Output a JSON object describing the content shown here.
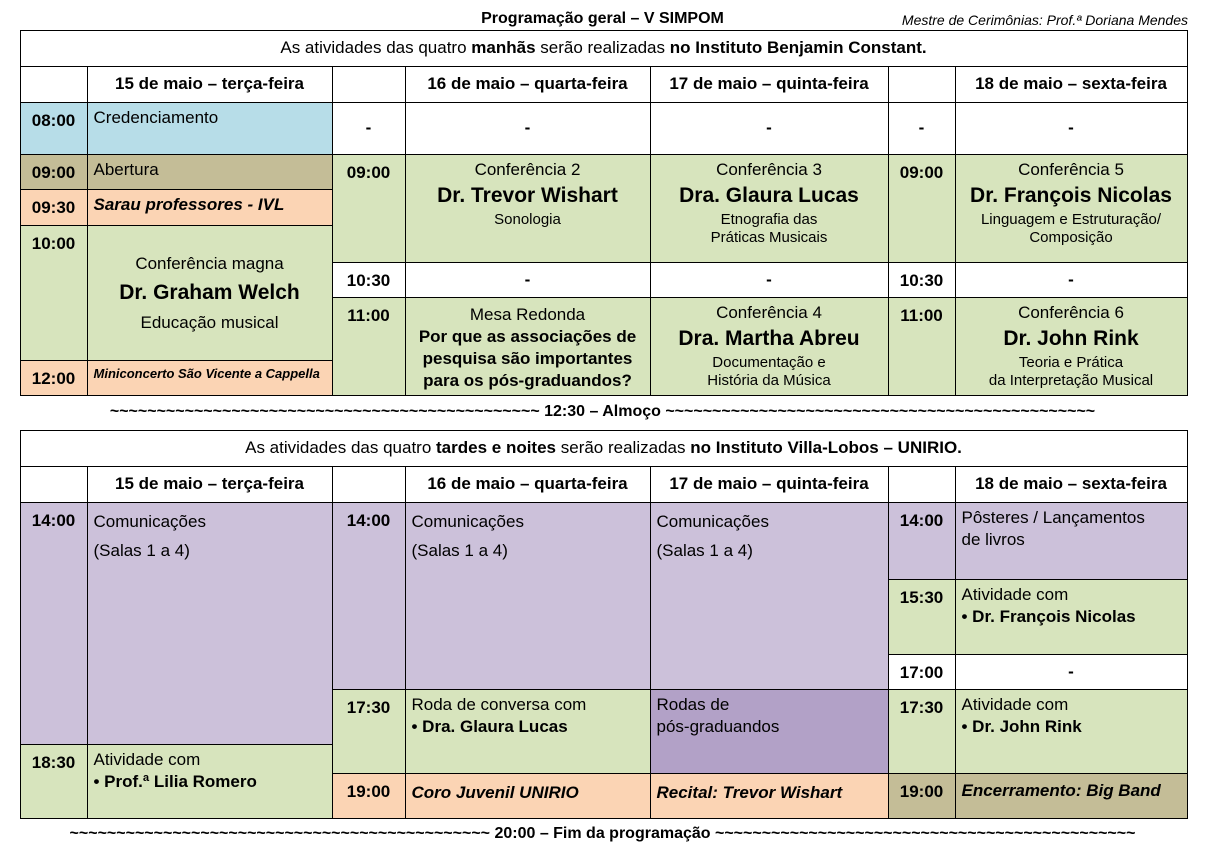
{
  "title": "Programação geral – V SIMPOM",
  "master": "Mestre de Cerimônias: Prof.ª Doriana Mendes",
  "colors": {
    "blue": "#b7dde8",
    "tan": "#c4bd97",
    "peach": "#fbd4b4",
    "green": "#d7e4bd",
    "lavender": "#ccc1da",
    "purple": "#b2a1c7",
    "white": "#ffffff"
  },
  "morning": {
    "header": [
      "As atividades das quatro ",
      "manhãs",
      " serão realizadas ",
      "no Instituto Benjamin Constant."
    ],
    "days": [
      "15 de maio – terça-feira",
      "16 de maio – quarta-feira",
      "17 de maio – quinta-feira",
      "18 de maio – sexta-feira"
    ],
    "d15": {
      "t0800": "08:00",
      "credenciamento": [
        "Credenciamento"
      ],
      "t0900": "09:00",
      "abertura": [
        "Abertura"
      ],
      "t0930": "09:30",
      "sarau": [
        "Sarau professores - IVL"
      ],
      "t1000": "10:00",
      "magna": [
        "Conferência magna",
        "Dr. Graham Welch",
        "Educação musical"
      ],
      "t1200": "12:00",
      "miniconcerto": [
        "Miniconcerto São Vicente a Cappella"
      ]
    },
    "dash": "-",
    "d16": {
      "t0900": "09:00",
      "conf2": [
        "Conferência 2",
        "Dr. Trevor Wishart",
        "Sonologia"
      ],
      "t1030": "10:30",
      "t1100": "11:00",
      "mesa": [
        "Mesa Redonda",
        "Por que as associações de",
        "pesquisa são importantes",
        "para os pós-graduandos?"
      ]
    },
    "d17": {
      "conf3": [
        "Conferência 3",
        "Dra. Glaura Lucas",
        "Etnografia das",
        "Práticas Musicais"
      ],
      "conf4": [
        "Conferência 4",
        "Dra. Martha Abreu",
        "Documentação e",
        "História da Música"
      ]
    },
    "d18": {
      "t0900": "09:00",
      "conf5": [
        "Conferência 5",
        "Dr. François Nicolas",
        "Linguagem e Estruturação/",
        "Composição"
      ],
      "t1030": "10:30",
      "t1100": "11:00",
      "conf6": [
        "Conferência 6",
        "Dr. John Rink",
        "Teoria e Prática",
        "da Interpretação Musical"
      ]
    }
  },
  "lunch": "~~~~~~~~~~~~~~~~~~~~~~~~~~~~~~~~~~~~~~~~~~~~~~ 12:30 – Almoço ~~~~~~~~~~~~~~~~~~~~~~~~~~~~~~~~~~~~~~~~~~~~~~",
  "afternoon": {
    "header": [
      "As atividades das quatro ",
      "tardes e noites",
      " serão realizadas ",
      "no Instituto Villa-Lobos – UNIRIO."
    ],
    "days": [
      "15 de maio – terça-feira",
      "16 de maio – quarta-feira",
      "17 de maio – quinta-feira",
      "18 de maio – sexta-feira"
    ],
    "d15": {
      "t1400": "14:00",
      "comunicacoes": [
        "Comunicações",
        "(Salas 1 a 4)"
      ],
      "t1830": "18:30",
      "atividade": [
        "Atividade com",
        "• Prof.ª Lilia Romero"
      ]
    },
    "d16": {
      "t1400": "14:00",
      "comunicacoes": [
        "Comunicações",
        "(Salas 1 a 4)"
      ],
      "t1730": "17:30",
      "roda": [
        "Roda de conversa com",
        "• Dra. Glaura Lucas"
      ],
      "t1900": "19:00",
      "coro": [
        "Coro Juvenil UNIRIO"
      ]
    },
    "d17": {
      "comunicacoes": [
        "Comunicações",
        "(Salas 1 a 4)"
      ],
      "rodas": [
        "Rodas de",
        "pós-graduandos"
      ],
      "recital": [
        "Recital: Trevor Wishart"
      ]
    },
    "d18": {
      "t1400": "14:00",
      "posteres": [
        "Pôsteres / Lançamentos",
        "de livros"
      ],
      "t1530": "15:30",
      "atividade1": [
        "Atividade com",
        "• Dr. François Nicolas"
      ],
      "t1700": "17:00",
      "t1730": "17:30",
      "atividade2": [
        "Atividade com",
        "• Dr. John Rink"
      ],
      "t1900": "19:00",
      "encerramento": [
        "Encerramento: Big Band"
      ]
    }
  },
  "end": "~~~~~~~~~~~~~~~~~~~~~~~~~~~~~~~~~~~~~~~~~~~~~ 20:00 – Fim da programação ~~~~~~~~~~~~~~~~~~~~~~~~~~~~~~~~~~~~~~~~~~~~~"
}
